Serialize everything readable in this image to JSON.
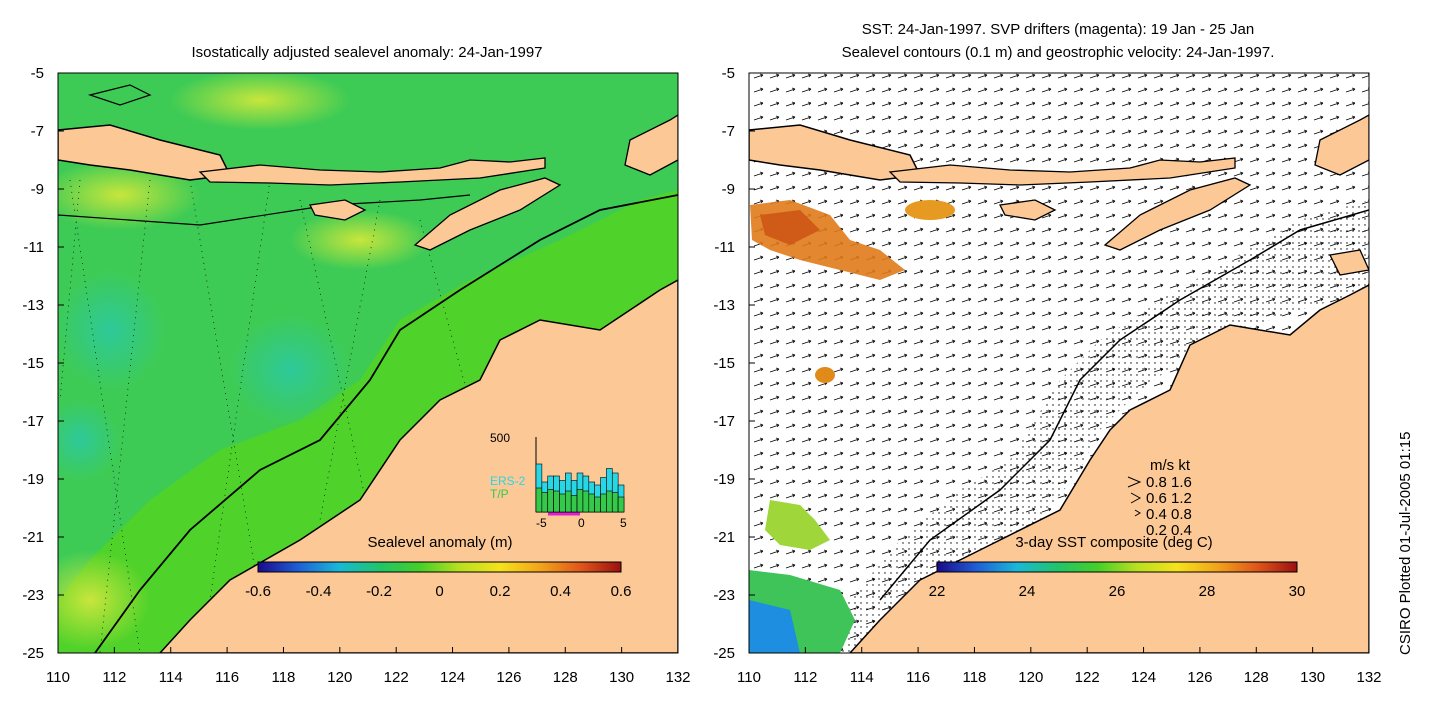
{
  "left_panel": {
    "title": "Isostatically adjusted sealevel anomaly: 24-Jan-1997",
    "colorbar": {
      "label": "Sealevel anomaly (m)",
      "ticks": [
        "-0.6",
        "-0.4",
        "-0.2",
        "0",
        "0.2",
        "0.4",
        "0.6"
      ],
      "colors": [
        "#1a0a8a",
        "#1f5fd6",
        "#19b8d8",
        "#21c46b",
        "#44cf29",
        "#b8e020",
        "#f5e21c",
        "#f2a41b",
        "#e0561a",
        "#9a1010"
      ]
    },
    "inset_histogram": {
      "ymax_label": "500",
      "series_labels": [
        "ERS-2",
        "T/P"
      ],
      "series_colors": [
        "#29d6e6",
        "#35c94b"
      ],
      "x_ticks": [
        "-5",
        "0",
        "5"
      ],
      "bins_ers2": [
        320,
        200,
        240,
        240,
        210,
        260,
        210,
        260,
        240,
        200,
        180,
        230,
        290,
        260,
        180
      ],
      "bins_tp": [
        160,
        130,
        150,
        140,
        120,
        140,
        110,
        150,
        140,
        120,
        100,
        120,
        140,
        130,
        100
      ]
    }
  },
  "right_panel": {
    "title_line1": "SST: 24-Jan-1997. SVP drifters (magenta): 19 Jan - 25 Jan",
    "title_line2": "Sealevel contours (0.1 m) and geostrophic velocity: 24-Jan-1997.",
    "colorbar": {
      "label": "3-day SST composite (deg C)",
      "ticks": [
        "22",
        "24",
        "26",
        "28",
        "30"
      ],
      "colors": [
        "#1a0a8a",
        "#1f5fd6",
        "#19b8d8",
        "#21c46b",
        "#44cf29",
        "#b8e020",
        "#f5e21c",
        "#f2a41b",
        "#e0561a",
        "#9a1010"
      ]
    },
    "velocity_legend": {
      "header": "m/s  kt",
      "rows": [
        "0.8  1.6",
        "0.6  1.2",
        "0.4  0.8",
        "0.2  0.4"
      ]
    }
  },
  "axes": {
    "y_ticks": [
      "-5",
      "-7",
      "-9",
      "-11",
      "-13",
      "-15",
      "-17",
      "-19",
      "-21",
      "-23",
      "-25"
    ],
    "x_ticks": [
      "110",
      "112",
      "114",
      "116",
      "118",
      "120",
      "122",
      "124",
      "126",
      "128",
      "130",
      "132"
    ]
  },
  "credit": "CSIRO Plotted 01-Jul-2005 01:15",
  "colors": {
    "land": "#fcc896",
    "coast": "#000000",
    "ocean_green": "#3ccc3c",
    "shelf_green": "#4fd22a"
  }
}
